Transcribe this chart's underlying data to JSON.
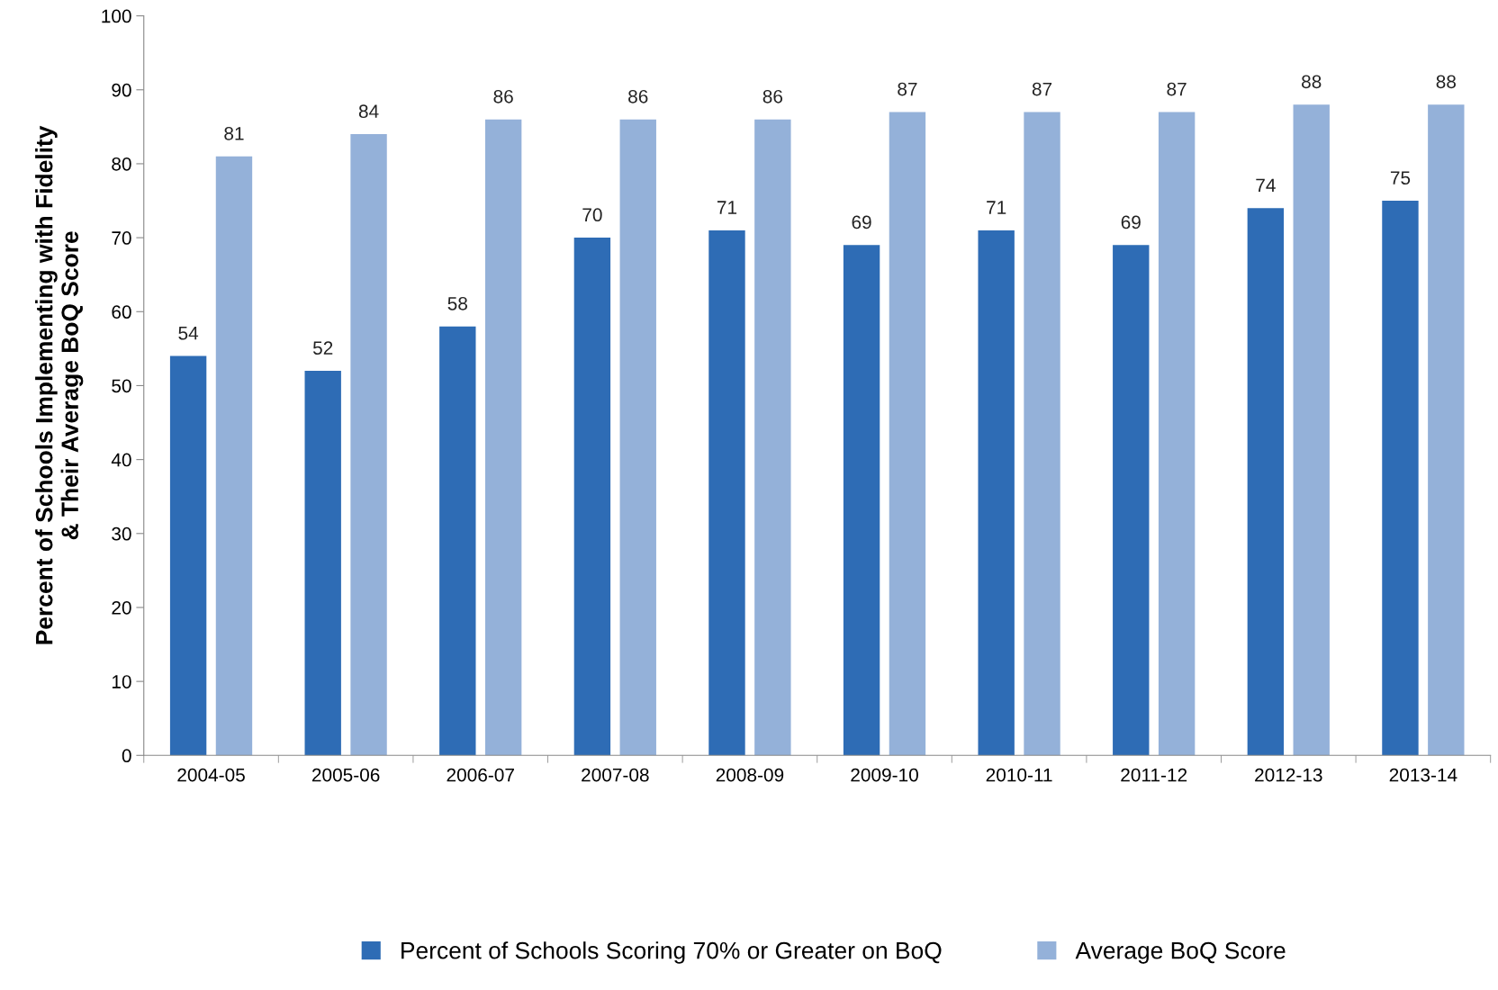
{
  "chart_data": {
    "type": "bar",
    "ylabel": "Percent of Schools Implementing with Fidelity\n& Their Average BoQ Score",
    "categories": [
      "2004-05",
      "2005-06",
      "2006-07",
      "2007-08",
      "2008-09",
      "2009-10",
      "2010-11",
      "2011-12",
      "2012-13",
      "2013-14"
    ],
    "series": [
      {
        "name": "Percent of Schools Scoring 70% or Greater on BoQ",
        "color": "#2e6cb5",
        "values": [
          54,
          52,
          58,
          70,
          71,
          69,
          71,
          69,
          74,
          75
        ]
      },
      {
        "name": "Average BoQ Score",
        "color": "#94b1d9",
        "values": [
          81,
          84,
          86,
          86,
          86,
          87,
          87,
          87,
          88,
          88
        ]
      }
    ],
    "ylim": [
      0,
      100
    ],
    "yticks": [
      0,
      10,
      20,
      30,
      40,
      50,
      60,
      70,
      80,
      90,
      100
    ],
    "grid": false,
    "legend": "bottom",
    "data_labels": true
  }
}
